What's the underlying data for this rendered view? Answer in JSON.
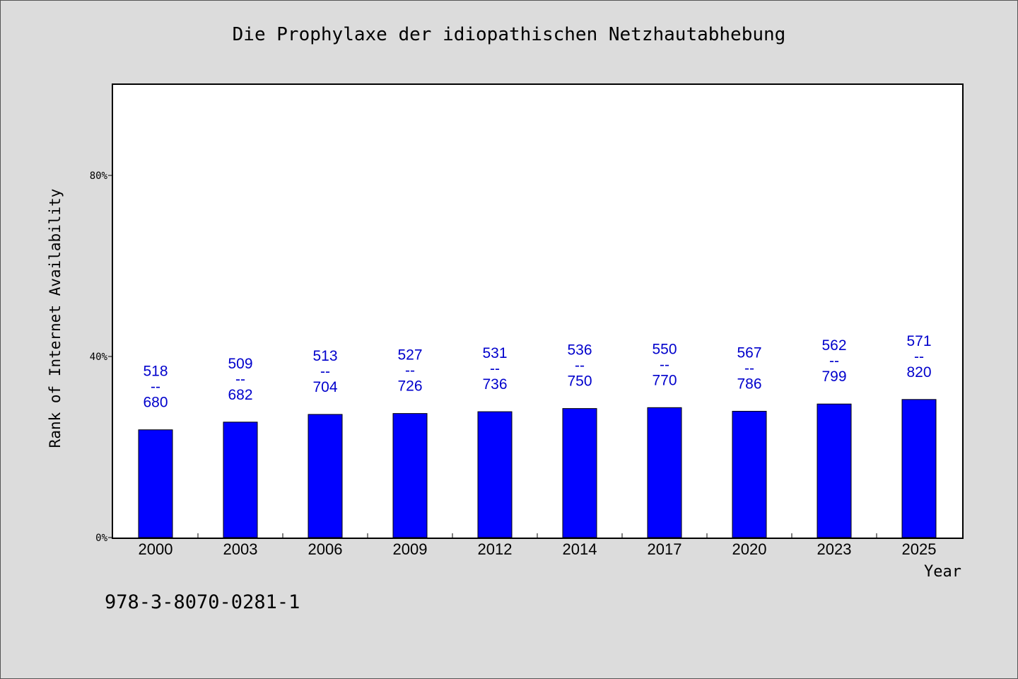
{
  "chart_data": {
    "type": "bar",
    "title": "Die Prophylaxe der idiopathischen Netzhautabhebung",
    "xlabel": "Year",
    "ylabel": "Rank of Internet Availability",
    "categories": [
      "2000",
      "2003",
      "2006",
      "2009",
      "2012",
      "2014",
      "2017",
      "2020",
      "2023",
      "2025"
    ],
    "values": [
      23.8,
      25.5,
      27.2,
      27.4,
      27.8,
      28.5,
      28.7,
      27.9,
      29.5,
      30.5
    ],
    "value_unit": "%",
    "data_labels": [
      {
        "top": "518",
        "sep": "--",
        "bottom": "680"
      },
      {
        "top": "509",
        "sep": "--",
        "bottom": "682"
      },
      {
        "top": "513",
        "sep": "--",
        "bottom": "704"
      },
      {
        "top": "527",
        "sep": "--",
        "bottom": "726"
      },
      {
        "top": "531",
        "sep": "--",
        "bottom": "736"
      },
      {
        "top": "536",
        "sep": "--",
        "bottom": "750"
      },
      {
        "top": "550",
        "sep": "--",
        "bottom": "770"
      },
      {
        "top": "567",
        "sep": "--",
        "bottom": "786"
      },
      {
        "top": "562",
        "sep": "--",
        "bottom": "799"
      },
      {
        "top": "571",
        "sep": "--",
        "bottom": "820"
      }
    ],
    "ylim": [
      0,
      100
    ],
    "yticks": [
      0,
      40,
      80
    ],
    "ytick_labels": [
      "0%",
      "40%",
      "80%"
    ],
    "grid": false,
    "legend": "none",
    "colors": {
      "bar": "#0000ff",
      "bar_edge": "#000000",
      "data_label": "#0000cc",
      "plot_background": "#ffffff",
      "page_background": "#dcdcdc"
    }
  },
  "footnote": "978-3-8070-0281-1"
}
